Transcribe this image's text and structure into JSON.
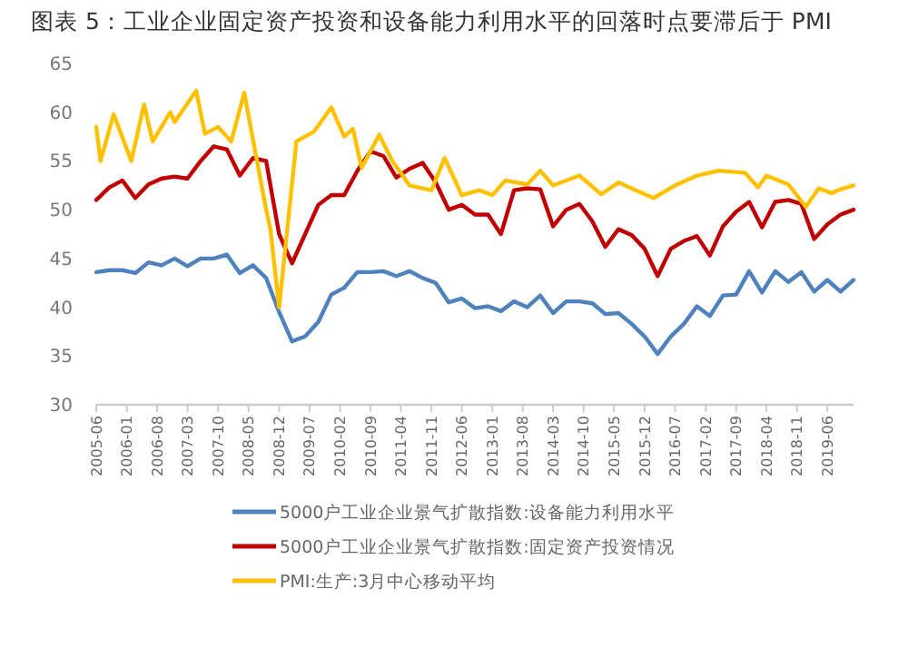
{
  "chart_data": {
    "type": "line",
    "title": "图表 5：工业企业固定资产投资和设备能力利用水平的回落时点要滞后于 PMI",
    "xlim": [
      "2005-06",
      "2019-12"
    ],
    "xticks": [
      "2005-06",
      "2006-01",
      "2006-08",
      "2007-03",
      "2007-10",
      "2008-05",
      "2008-12",
      "2009-07",
      "2010-02",
      "2010-09",
      "2011-04",
      "2011-11",
      "2012-06",
      "2013-01",
      "2013-08",
      "2014-03",
      "2014-10",
      "2015-05",
      "2015-12",
      "2016-07",
      "2017-02",
      "2017-09",
      "2018-04",
      "2018-11",
      "2019-06"
    ],
    "ylim": [
      30,
      65
    ],
    "yticks": [
      30,
      35,
      40,
      45,
      50,
      55,
      60,
      65
    ],
    "grid": false,
    "legend": "bottom",
    "marker": "none",
    "line_style": "solid",
    "series": [
      {
        "name": "5000户工业企业景气扩散指数:设备能力利用水平",
        "color": "#4f81bd",
        "x": [
          "2005-06",
          "2005-09",
          "2005-12",
          "2006-03",
          "2006-06",
          "2006-09",
          "2006-12",
          "2007-03",
          "2007-06",
          "2007-09",
          "2007-12",
          "2008-03",
          "2008-06",
          "2008-09",
          "2008-12",
          "2009-03",
          "2009-06",
          "2009-09",
          "2009-12",
          "2010-03",
          "2010-06",
          "2010-09",
          "2010-12",
          "2011-03",
          "2011-06",
          "2011-09",
          "2011-12",
          "2012-03",
          "2012-06",
          "2012-09",
          "2012-12",
          "2013-03",
          "2013-06",
          "2013-09",
          "2013-12",
          "2014-03",
          "2014-06",
          "2014-09",
          "2014-12",
          "2015-03",
          "2015-06",
          "2015-09",
          "2015-12",
          "2016-03",
          "2016-06",
          "2016-09",
          "2016-12",
          "2017-03",
          "2017-06",
          "2017-09",
          "2017-12",
          "2018-03",
          "2018-06",
          "2018-09",
          "2018-12",
          "2019-03",
          "2019-06",
          "2019-09",
          "2019-12"
        ],
        "values": [
          43.6,
          43.8,
          43.8,
          43.5,
          44.6,
          44.3,
          45,
          44.2,
          45,
          45,
          45.4,
          43.5,
          44.3,
          43,
          39.5,
          36.5,
          37,
          38.5,
          41.3,
          42,
          43.6,
          43.6,
          43.7,
          43.2,
          43.7,
          43,
          42.5,
          40.5,
          40.9,
          39.9,
          40.1,
          39.6,
          40.6,
          40,
          41.2,
          39.4,
          40.6,
          40.6,
          40.4,
          39.3,
          39.4,
          38.3,
          37,
          35.2,
          37,
          38.3,
          40.1,
          39.1,
          41.2,
          41.3,
          43.7,
          41.5,
          43.7,
          42.6,
          43.6,
          41.6,
          42.8,
          41.6,
          42.8
        ]
      },
      {
        "name": "5000户工业企业景气扩散指数:固定资产投资情况",
        "color": "#c00000",
        "x": [
          "2005-06",
          "2005-09",
          "2005-12",
          "2006-03",
          "2006-06",
          "2006-09",
          "2006-12",
          "2007-03",
          "2007-06",
          "2007-09",
          "2007-12",
          "2008-03",
          "2008-06",
          "2008-09",
          "2008-12",
          "2009-03",
          "2009-06",
          "2009-09",
          "2009-12",
          "2010-03",
          "2010-06",
          "2010-09",
          "2010-12",
          "2011-03",
          "2011-06",
          "2011-09",
          "2011-12",
          "2012-03",
          "2012-06",
          "2012-09",
          "2012-12",
          "2013-03",
          "2013-06",
          "2013-09",
          "2013-12",
          "2014-03",
          "2014-06",
          "2014-09",
          "2014-12",
          "2015-03",
          "2015-06",
          "2015-09",
          "2015-12",
          "2016-03",
          "2016-06",
          "2016-09",
          "2016-12",
          "2017-03",
          "2017-06",
          "2017-09",
          "2017-12",
          "2018-03",
          "2018-06",
          "2018-09",
          "2018-12",
          "2019-03",
          "2019-06",
          "2019-09",
          "2019-12"
        ],
        "values": [
          51,
          52.3,
          53,
          51.2,
          52.6,
          53.2,
          53.4,
          53.2,
          55,
          56.5,
          56.2,
          53.5,
          55.3,
          55,
          47.5,
          44.5,
          47.5,
          50.5,
          51.5,
          51.5,
          54,
          56,
          55.5,
          53.3,
          54.2,
          54.8,
          52.8,
          50,
          50.5,
          49.5,
          49.5,
          47.5,
          52,
          52.2,
          52.1,
          48.3,
          50,
          50.6,
          48.8,
          46.2,
          48,
          47.4,
          46,
          43.2,
          46,
          46.8,
          47.3,
          45.3,
          48.3,
          49.8,
          50.8,
          48.2,
          50.8,
          51,
          50.6,
          47,
          48.5,
          49.5,
          50
        ]
      },
      {
        "name": "PMI:生产:3月中心移动平均",
        "color": "#ffc000",
        "x": [
          "2005-06",
          "2005-07",
          "2005-10",
          "2006-02",
          "2006-05",
          "2006-07",
          "2006-11",
          "2006-12",
          "2007-05",
          "2007-07",
          "2007-10",
          "2008-01",
          "2008-04",
          "2008-09",
          "2008-10",
          "2008-12",
          "2009-04",
          "2009-08",
          "2009-12",
          "2010-03",
          "2010-05",
          "2010-07",
          "2010-11",
          "2011-02",
          "2011-06",
          "2011-11",
          "2012-02",
          "2012-06",
          "2012-10",
          "2013-01",
          "2013-04",
          "2013-09",
          "2013-12",
          "2014-03",
          "2014-09",
          "2015-02",
          "2015-06",
          "2015-10",
          "2016-02",
          "2016-07",
          "2016-12",
          "2017-05",
          "2017-11",
          "2018-02",
          "2018-04",
          "2018-09",
          "2019-01",
          "2019-04",
          "2019-07",
          "2019-09",
          "2019-12"
        ],
        "values": [
          58.5,
          55,
          59.8,
          55,
          60.8,
          57,
          60,
          59,
          62.2,
          57.8,
          58.5,
          57,
          62,
          50,
          48,
          40,
          57,
          58,
          60.5,
          57.5,
          58.3,
          54.3,
          57.7,
          55,
          52.5,
          52,
          55.3,
          51.5,
          52,
          51.5,
          53,
          52.6,
          54,
          52.5,
          53.5,
          51.6,
          52.8,
          52,
          51.2,
          52.5,
          53.5,
          54,
          53.8,
          52.3,
          53.5,
          52.6,
          50.3,
          52.2,
          51.7,
          52.1,
          52.5
        ]
      }
    ]
  }
}
